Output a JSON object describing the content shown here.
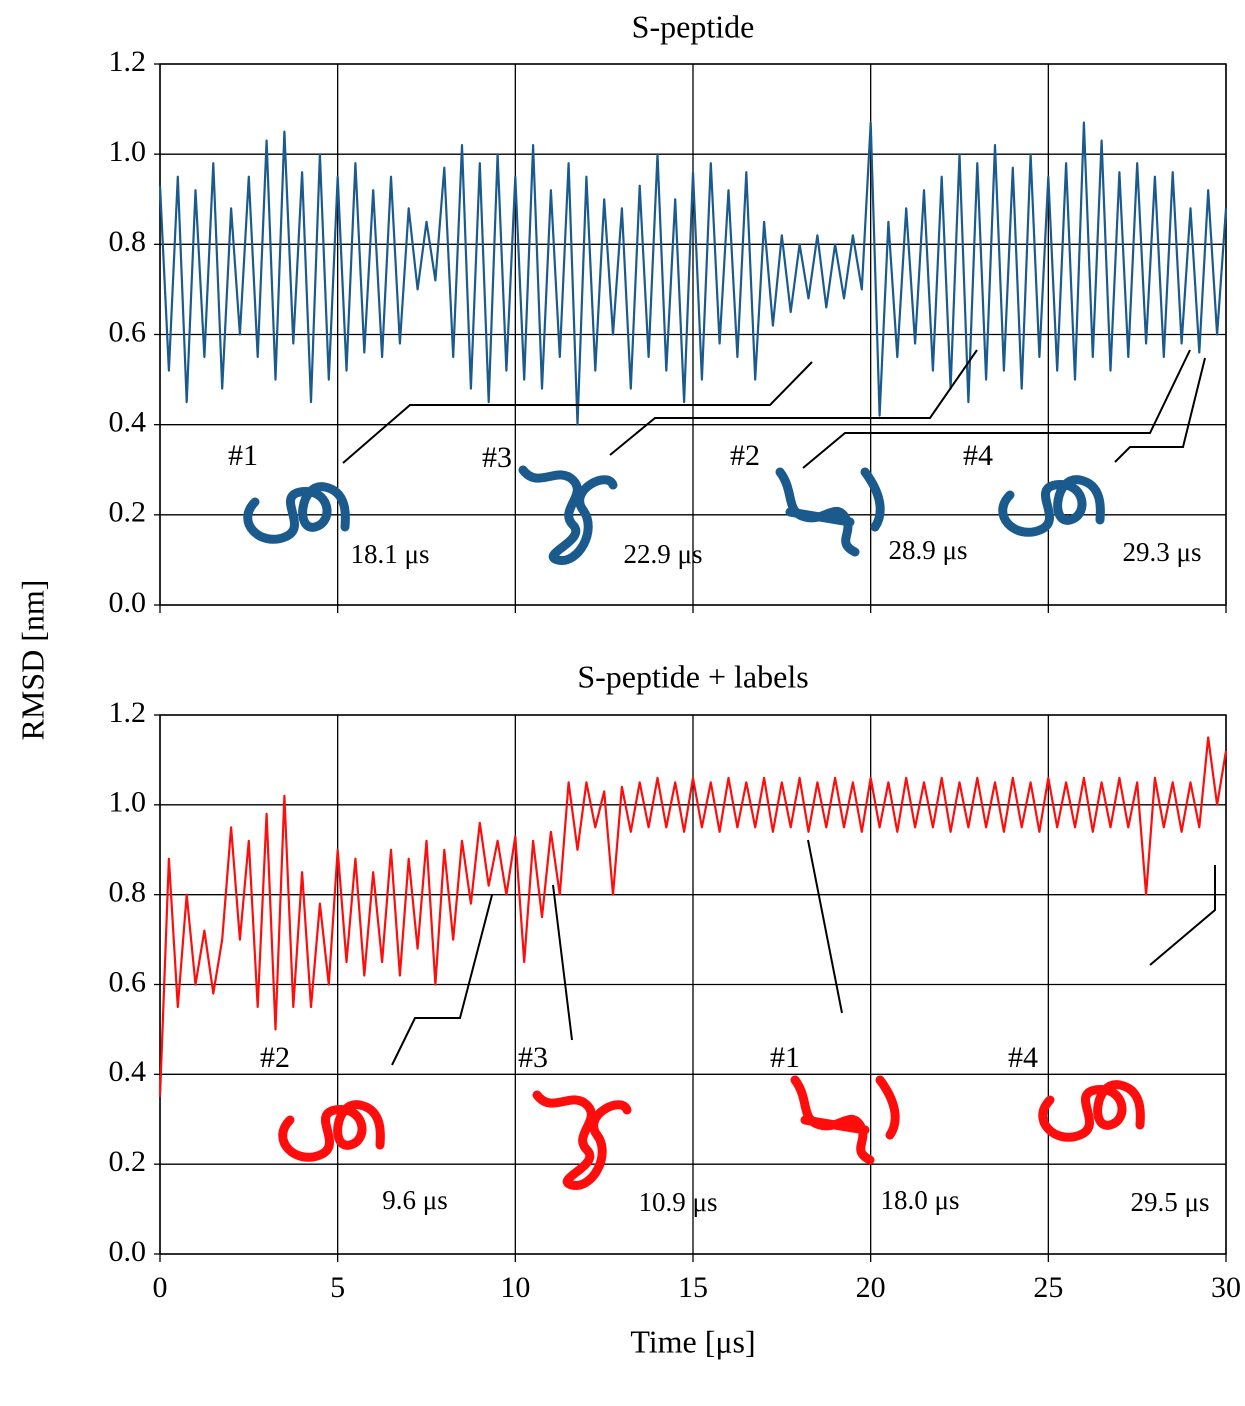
{
  "chart_data": [
    {
      "type": "line",
      "title": "S-peptide",
      "ylabel": "RMSD [nm]",
      "x": [
        0,
        0.25,
        0.5,
        0.75,
        1,
        1.25,
        1.5,
        1.75,
        2,
        2.25,
        2.5,
        2.75,
        3,
        3.25,
        3.5,
        3.75,
        4,
        4.25,
        4.5,
        4.75,
        5,
        5.25,
        5.5,
        5.75,
        6,
        6.25,
        6.5,
        6.75,
        7,
        7.25,
        7.5,
        7.75,
        8,
        8.25,
        8.5,
        8.75,
        9,
        9.25,
        9.5,
        9.75,
        10,
        10.25,
        10.5,
        10.75,
        11,
        11.25,
        11.5,
        11.75,
        12,
        12.25,
        12.5,
        12.75,
        13,
        13.25,
        13.5,
        13.75,
        14,
        14.25,
        14.5,
        14.75,
        15,
        15.25,
        15.5,
        15.75,
        16,
        16.25,
        16.5,
        16.75,
        17,
        17.25,
        17.5,
        17.75,
        18,
        18.25,
        18.5,
        18.75,
        19,
        19.25,
        19.5,
        19.75,
        20,
        20.25,
        20.5,
        20.75,
        21,
        21.25,
        21.5,
        21.75,
        22,
        22.25,
        22.5,
        22.75,
        23,
        23.25,
        23.5,
        23.75,
        24,
        24.25,
        24.5,
        24.75,
        25,
        25.25,
        25.5,
        25.75,
        26,
        26.25,
        26.5,
        26.75,
        27,
        27.25,
        27.5,
        27.75,
        28,
        28.25,
        28.5,
        28.75,
        29,
        29.25,
        29.5,
        29.75,
        30
      ],
      "series": [
        {
          "name": "S-peptide",
          "color": "#1b5a8c",
          "values": [
            0.93,
            0.52,
            0.95,
            0.45,
            0.92,
            0.55,
            0.98,
            0.48,
            0.88,
            0.6,
            0.95,
            0.55,
            1.03,
            0.5,
            1.05,
            0.58,
            0.96,
            0.45,
            1.0,
            0.5,
            0.95,
            0.52,
            0.98,
            0.56,
            0.92,
            0.55,
            0.95,
            0.58,
            0.88,
            0.7,
            0.85,
            0.72,
            0.97,
            0.55,
            1.02,
            0.48,
            0.98,
            0.45,
            1.0,
            0.52,
            0.95,
            0.5,
            1.02,
            0.48,
            0.92,
            0.55,
            0.98,
            0.4,
            0.95,
            0.52,
            0.9,
            0.6,
            0.88,
            0.48,
            0.93,
            0.55,
            1.0,
            0.52,
            0.9,
            0.45,
            0.96,
            0.5,
            0.98,
            0.58,
            0.92,
            0.55,
            0.96,
            0.5,
            0.85,
            0.62,
            0.82,
            0.65,
            0.8,
            0.68,
            0.82,
            0.66,
            0.8,
            0.68,
            0.82,
            0.7,
            1.07,
            0.42,
            0.85,
            0.55,
            0.88,
            0.58,
            0.92,
            0.52,
            0.95,
            0.48,
            1.0,
            0.45,
            0.98,
            0.5,
            1.02,
            0.52,
            0.97,
            0.48,
            1.0,
            0.55,
            0.95,
            0.52,
            0.98,
            0.5,
            1.07,
            0.55,
            1.03,
            0.52,
            0.96,
            0.55,
            0.98,
            0.58,
            0.95,
            0.55,
            0.96,
            0.58,
            0.88,
            0.56,
            0.92,
            0.6,
            0.88
          ]
        }
      ],
      "xlim": [
        0,
        30
      ],
      "xticks": [
        0,
        5,
        10,
        15,
        20,
        25,
        30
      ],
      "ylim": [
        0,
        1.2
      ],
      "yticks": [
        {
          "value": 0,
          "label": "0.0"
        },
        0.2,
        0.4,
        0.6,
        0.8,
        {
          "value": 1,
          "label": "1.0"
        },
        1.2
      ],
      "grid": true,
      "snapshots": [
        {
          "label": "#1",
          "time": "18.1 μs"
        },
        {
          "label": "#3",
          "time": "22.9 μs"
        },
        {
          "label": "#2",
          "time": "28.9 μs"
        },
        {
          "label": "#4",
          "time": "29.3 μs"
        }
      ]
    },
    {
      "type": "line",
      "title": "S-peptide + labels",
      "xlabel": "Time [μs]",
      "x": [
        0,
        0.25,
        0.5,
        0.75,
        1,
        1.25,
        1.5,
        1.75,
        2,
        2.25,
        2.5,
        2.75,
        3,
        3.25,
        3.5,
        3.75,
        4,
        4.25,
        4.5,
        4.75,
        5,
        5.25,
        5.5,
        5.75,
        6,
        6.25,
        6.5,
        6.75,
        7,
        7.25,
        7.5,
        7.75,
        8,
        8.25,
        8.5,
        8.75,
        9,
        9.25,
        9.5,
        9.75,
        10,
        10.25,
        10.5,
        10.75,
        11,
        11.25,
        11.5,
        11.75,
        12,
        12.25,
        12.5,
        12.75,
        13,
        13.25,
        13.5,
        13.75,
        14,
        14.25,
        14.5,
        14.75,
        15,
        15.25,
        15.5,
        15.75,
        16,
        16.25,
        16.5,
        16.75,
        17,
        17.25,
        17.5,
        17.75,
        18,
        18.25,
        18.5,
        18.75,
        19,
        19.25,
        19.5,
        19.75,
        20,
        20.25,
        20.5,
        20.75,
        21,
        21.25,
        21.5,
        21.75,
        22,
        22.25,
        22.5,
        22.75,
        23,
        23.25,
        23.5,
        23.75,
        24,
        24.25,
        24.5,
        24.75,
        25,
        25.25,
        25.5,
        25.75,
        26,
        26.25,
        26.5,
        26.75,
        27,
        27.25,
        27.5,
        27.75,
        28,
        28.25,
        28.5,
        28.75,
        29,
        29.25,
        29.5,
        29.75,
        30
      ],
      "series": [
        {
          "name": "S-peptide + labels",
          "color": "#ff0d0d",
          "values": [
            0.35,
            0.88,
            0.55,
            0.8,
            0.6,
            0.72,
            0.58,
            0.7,
            0.95,
            0.7,
            0.92,
            0.55,
            0.98,
            0.5,
            1.02,
            0.55,
            0.85,
            0.55,
            0.78,
            0.6,
            0.9,
            0.65,
            0.88,
            0.62,
            0.85,
            0.65,
            0.9,
            0.62,
            0.88,
            0.68,
            0.92,
            0.6,
            0.9,
            0.7,
            0.92,
            0.78,
            0.96,
            0.82,
            0.92,
            0.8,
            0.93,
            0.65,
            0.92,
            0.75,
            0.94,
            0.8,
            1.05,
            0.9,
            1.05,
            0.95,
            1.03,
            0.8,
            1.04,
            0.94,
            1.05,
            0.95,
            1.06,
            0.95,
            1.05,
            0.94,
            1.06,
            0.95,
            1.05,
            0.94,
            1.06,
            0.95,
            1.05,
            0.95,
            1.06,
            0.94,
            1.05,
            0.95,
            1.06,
            0.94,
            1.05,
            0.95,
            1.06,
            0.95,
            1.05,
            0.94,
            1.06,
            0.95,
            1.05,
            0.94,
            1.06,
            0.95,
            1.05,
            0.95,
            1.06,
            0.94,
            1.05,
            0.95,
            1.06,
            0.95,
            1.05,
            0.94,
            1.06,
            0.95,
            1.05,
            0.94,
            1.06,
            0.95,
            1.05,
            0.95,
            1.06,
            0.94,
            1.05,
            0.95,
            1.06,
            0.95,
            1.05,
            0.8,
            1.06,
            0.95,
            1.05,
            0.94,
            1.05,
            0.95,
            1.15,
            1.0,
            1.12
          ]
        }
      ],
      "xlim": [
        0,
        30
      ],
      "xticks": [
        0,
        5,
        10,
        15,
        20,
        25,
        30
      ],
      "ylim": [
        0,
        1.2
      ],
      "yticks": [
        {
          "value": 0,
          "label": "0.0"
        },
        0.2,
        0.4,
        0.6,
        0.8,
        {
          "value": 1,
          "label": "1.0"
        },
        1.2
      ],
      "grid": true,
      "snapshots": [
        {
          "label": "#2",
          "time": "9.6 μs"
        },
        {
          "label": "#3",
          "time": "10.9 μs"
        },
        {
          "label": "#1",
          "time": "18.0 μs"
        },
        {
          "label": "#4",
          "time": "29.5 μs"
        }
      ]
    }
  ]
}
